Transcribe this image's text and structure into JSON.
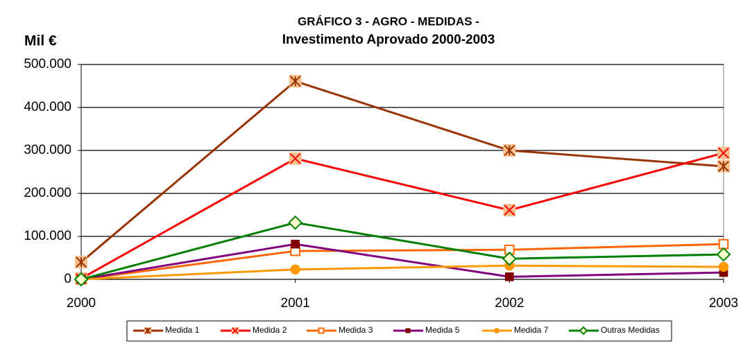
{
  "chart_data": {
    "type": "line",
    "title": "GRÁFICO 3 - AGRO - MEDIDAS -",
    "subtitle": "Investimento Aprovado 2000-2003",
    "ylabel": "Mil €",
    "x": [
      2000,
      2001,
      2002,
      2003
    ],
    "xlim": [
      2000,
      2003
    ],
    "xticks": [
      2000,
      2001,
      2002,
      2003
    ],
    "ylim": [
      0,
      500000
    ],
    "yticks": [
      0,
      {
        "value": 100000,
        "label": "100.000"
      },
      {
        "value": 200000,
        "label": "200.000"
      },
      {
        "value": 300000,
        "label": "300.000"
      },
      {
        "value": 400000,
        "label": "400.000"
      },
      {
        "value": 500000,
        "label": "500.000"
      }
    ],
    "grid": true,
    "legend": "bottom",
    "series": [
      {
        "name": "Medida 1",
        "color": "#993300",
        "marker": "star",
        "values": [
          40000,
          461000,
          300000,
          263000
        ]
      },
      {
        "name": "Medida 2",
        "color": "#ff0000",
        "marker": "x",
        "values": [
          2000,
          281000,
          161000,
          294000
        ]
      },
      {
        "name": "Medida 3",
        "color": "#ff6600",
        "marker": "square-open",
        "values": [
          0,
          66000,
          69000,
          82000
        ]
      },
      {
        "name": "Medida 5",
        "color": "#800080",
        "marker": "square",
        "values": [
          0,
          82000,
          6000,
          16000
        ]
      },
      {
        "name": "Medida 7",
        "color": "#ff9900",
        "marker": "circle",
        "values": [
          0,
          23000,
          32000,
          29000
        ]
      },
      {
        "name": "Outras Medidas",
        "color": "#008000",
        "marker": "diamond",
        "values": [
          0,
          132000,
          48000,
          58000
        ]
      }
    ]
  }
}
